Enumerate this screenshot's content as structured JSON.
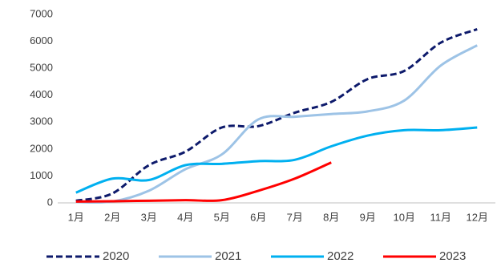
{
  "chart_data": {
    "type": "line",
    "categories": [
      "1月",
      "2月",
      "3月",
      "4月",
      "5月",
      "6月",
      "7月",
      "8月",
      "9月",
      "10月",
      "11月",
      "12月"
    ],
    "series": [
      {
        "name": "2020",
        "color": "#0d1a6b",
        "dashed": true,
        "values": [
          80,
          350,
          1400,
          1900,
          2800,
          2850,
          3350,
          3750,
          4600,
          4900,
          5950,
          6450
        ]
      },
      {
        "name": "2021",
        "color": "#9dc3e6",
        "dashed": false,
        "values": [
          30,
          50,
          450,
          1250,
          1800,
          3100,
          3200,
          3300,
          3400,
          3800,
          5100,
          5850
        ]
      },
      {
        "name": "2022",
        "color": "#00b0f0",
        "dashed": false,
        "values": [
          380,
          900,
          850,
          1400,
          1450,
          1550,
          1600,
          2100,
          2500,
          2700,
          2700,
          2800
        ]
      },
      {
        "name": "2023",
        "color": "#ff0000",
        "dashed": false,
        "values": [
          50,
          60,
          80,
          100,
          100,
          450,
          900,
          1500,
          null,
          null,
          null,
          null
        ]
      }
    ],
    "ylim": [
      0,
      7000
    ],
    "yticks": [
      0,
      1000,
      2000,
      3000,
      4000,
      5000,
      6000,
      7000
    ],
    "grid": false,
    "legend": "bottom"
  }
}
